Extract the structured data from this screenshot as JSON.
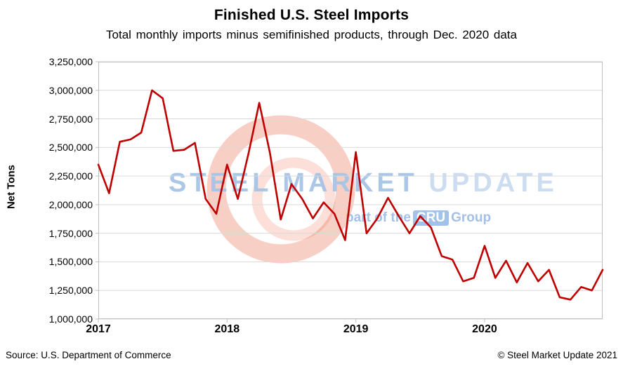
{
  "page": {
    "source": "Source: U.S. Department of Commerce",
    "copyright": "© Steel Market Update 2021"
  },
  "watermark": {
    "main1": "STEEL MARKET",
    "main2": " UPDATE",
    "sub_pre": "part of the",
    "cru": "CRU",
    "sub_post": "Group"
  },
  "colors": {
    "line": "#C00000",
    "grid": "#D9D9D9",
    "border": "#BFBFBF",
    "watermark_logo": "#E6502D",
    "watermark_text": "#A8C4E4",
    "cru_bg": "#8DB3E2"
  },
  "chart_data": {
    "type": "line",
    "title": "Finished U.S. Steel Imports",
    "subtitle": "Total monthly imports minus semifinished products, through Dec. 2020 data",
    "xlabel": "",
    "ylabel": "Net Tons",
    "ylim": [
      1000000,
      3250000
    ],
    "grid": true,
    "legend": "none",
    "x_unit": "month",
    "x_start": "2017-01",
    "x_end": "2020-12",
    "yticks": [
      {
        "label": "1,000,000",
        "value": 1000000
      },
      {
        "label": "1,250,000",
        "value": 1250000
      },
      {
        "label": "1,500,000",
        "value": 1500000
      },
      {
        "label": "1,750,000",
        "value": 1750000
      },
      {
        "label": "2,000,000",
        "value": 2000000
      },
      {
        "label": "2,250,000",
        "value": 2250000
      },
      {
        "label": "2,500,000",
        "value": 2500000
      },
      {
        "label": "2,750,000",
        "value": 2750000
      },
      {
        "label": "3,000,000",
        "value": 3000000
      },
      {
        "label": "3,250,000",
        "value": 3250000
      }
    ],
    "xticks": [
      {
        "label": "2017",
        "index": 0
      },
      {
        "label": "2018",
        "index": 12
      },
      {
        "label": "2019",
        "index": 24
      },
      {
        "label": "2020",
        "index": 36
      }
    ],
    "values": [
      2350000,
      2100000,
      2550000,
      2570000,
      2630000,
      3000000,
      2930000,
      2470000,
      2480000,
      2540000,
      2050000,
      1920000,
      2350000,
      2050000,
      2450000,
      2890000,
      2450000,
      1870000,
      2180000,
      2050000,
      1880000,
      2020000,
      1920000,
      1690000,
      2460000,
      1750000,
      1880000,
      2060000,
      1900000,
      1750000,
      1900000,
      1800000,
      1550000,
      1520000,
      1330000,
      1360000,
      1640000,
      1360000,
      1510000,
      1320000,
      1490000,
      1330000,
      1430000,
      1190000,
      1170000,
      1280000,
      1250000,
      1430000
    ]
  }
}
